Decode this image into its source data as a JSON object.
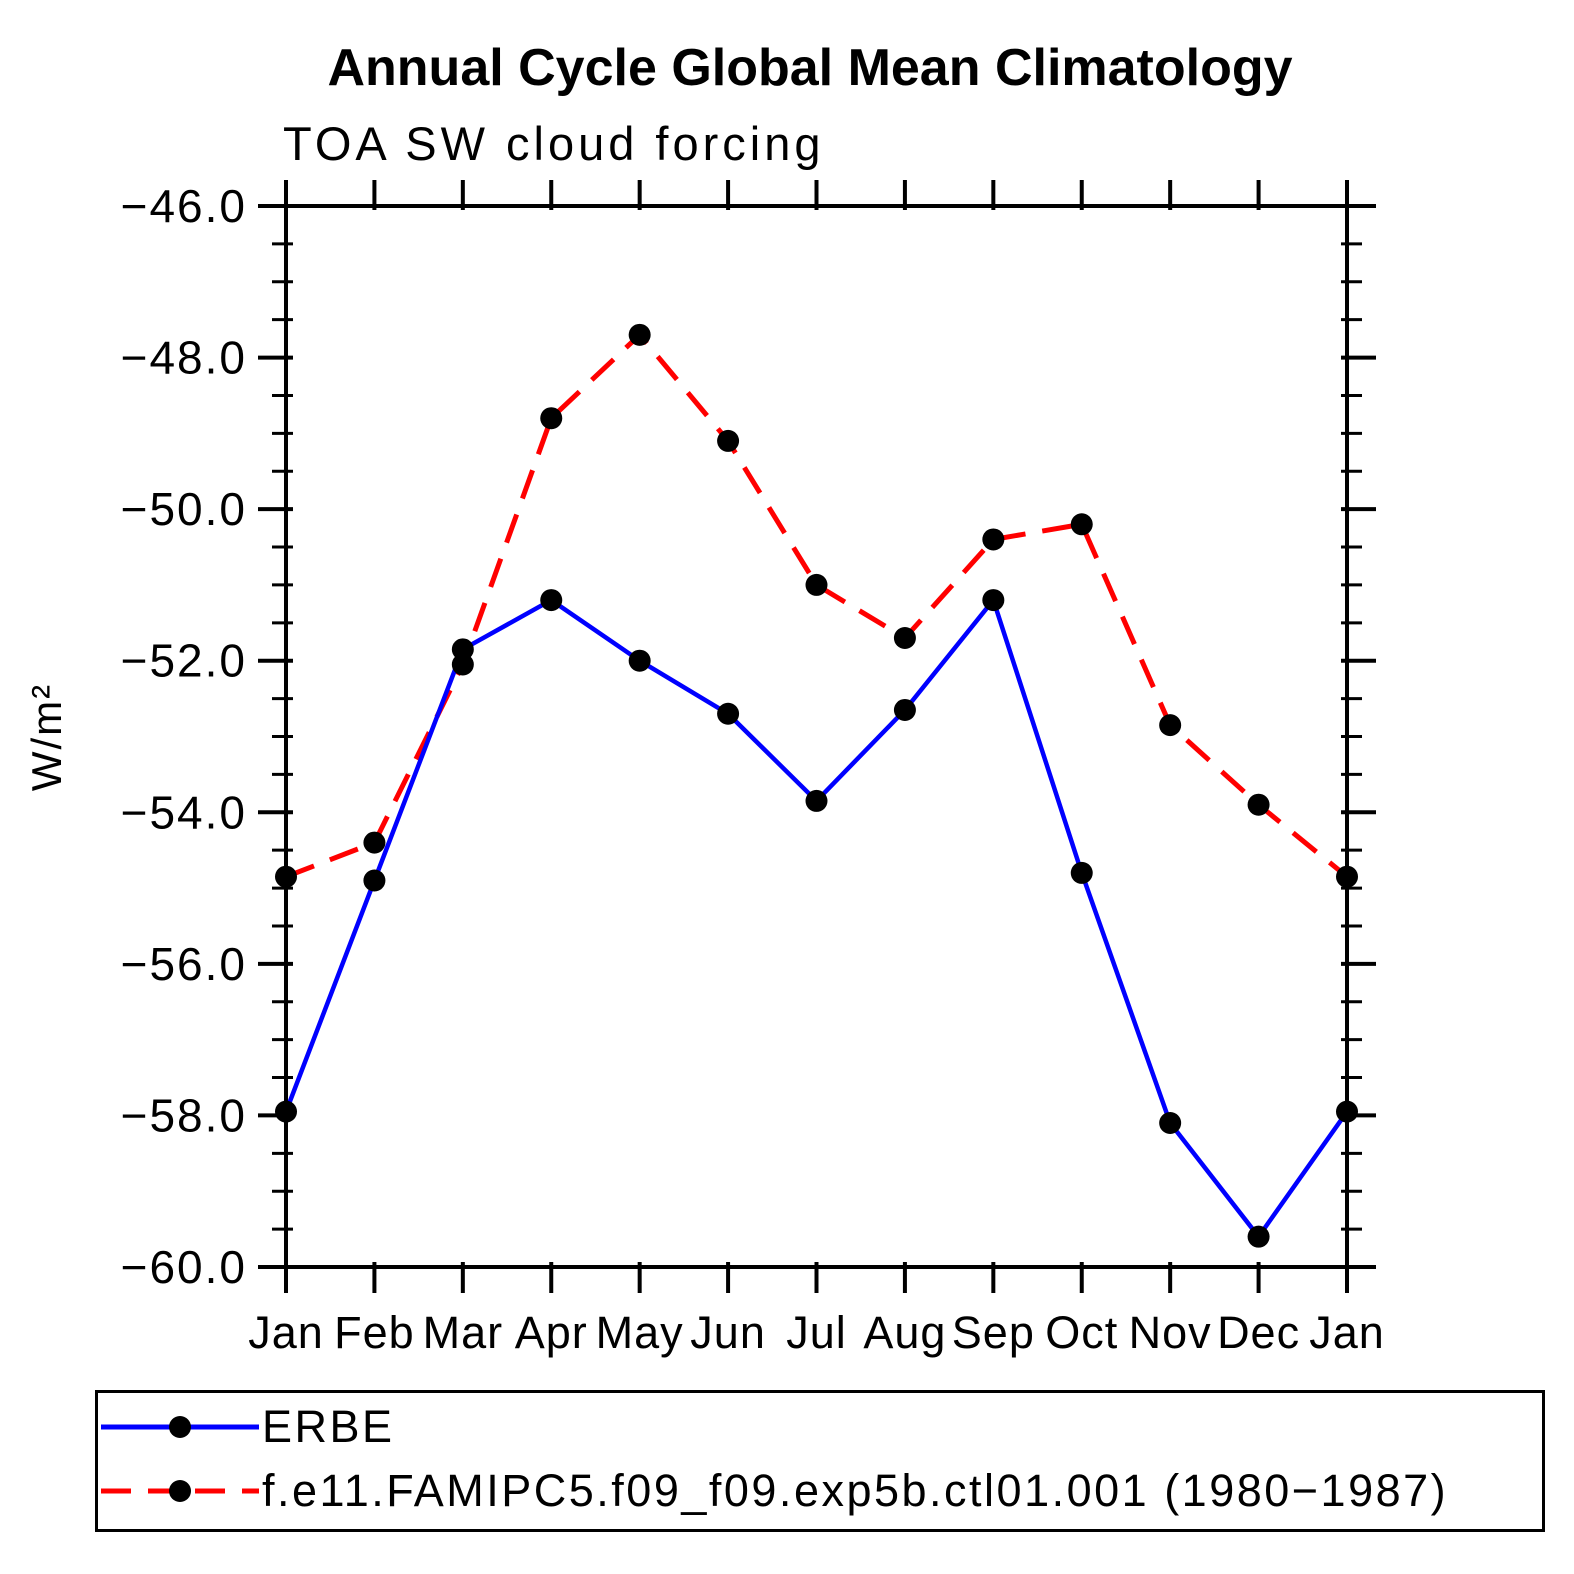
{
  "title": "Annual Cycle Global Mean Climatology",
  "subtitle": "TOA SW cloud forcing",
  "ylabel": "W/m²",
  "chart_data": {
    "type": "line",
    "categories": [
      "Jan",
      "Feb",
      "Mar",
      "Apr",
      "May",
      "Jun",
      "Jul",
      "Aug",
      "Sep",
      "Oct",
      "Nov",
      "Dec",
      "Jan"
    ],
    "series": [
      {
        "name": "ERBE",
        "color": "#0000ff",
        "style": "solid",
        "marker": "filled-circle",
        "marker_color": "#000000",
        "values": [
          -57.95,
          -54.9,
          -51.85,
          -51.2,
          -52.0,
          -52.7,
          -53.85,
          -52.65,
          -51.2,
          -54.8,
          -58.1,
          -59.6,
          -57.95
        ]
      },
      {
        "name": "f.e11.FAMIPC5.f09_f09.exp5b.ctl01.001 (1980−1987)",
        "color": "#ff0000",
        "style": "dashed",
        "marker": "filled-circle",
        "marker_color": "#000000",
        "values": [
          -54.85,
          -54.4,
          -52.05,
          -48.8,
          -47.7,
          -49.1,
          -51.0,
          -51.7,
          -50.4,
          -50.2,
          -52.85,
          -53.9,
          -54.85
        ]
      }
    ],
    "ylim": [
      -60.0,
      -46.0
    ],
    "ytick_major": 2.0,
    "ytick_minor": 0.5,
    "ytick_labels": [
      "−46.0",
      "−48.0",
      "−50.0",
      "−52.0",
      "−54.0",
      "−56.0",
      "−58.0",
      "−60.0"
    ],
    "grid": false,
    "legend_position": "bottom",
    "axis_color": "#000000"
  }
}
